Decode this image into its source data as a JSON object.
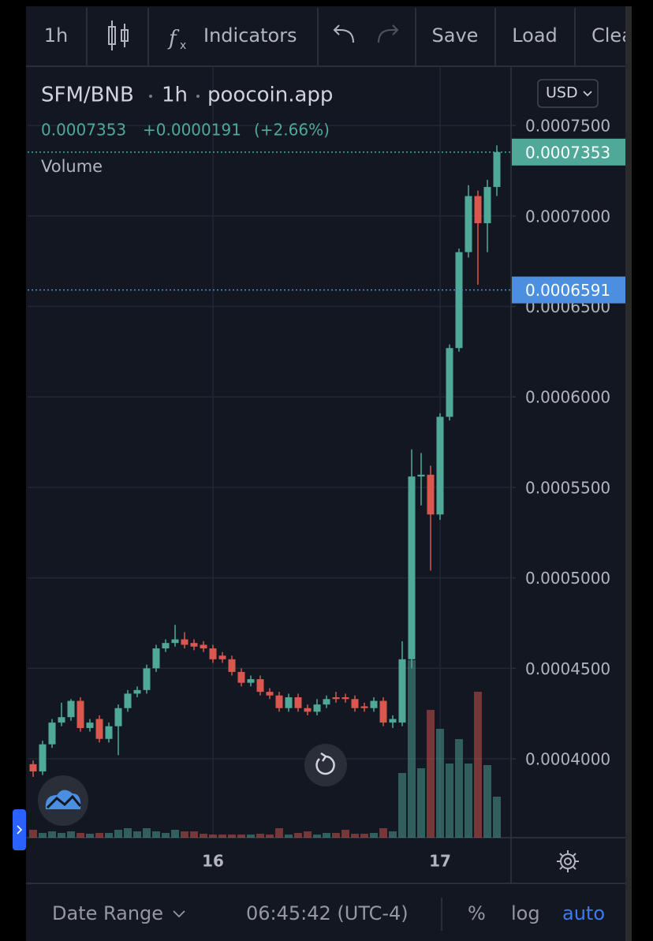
{
  "toolbar": {
    "interval": "1h",
    "indicators": "Indicators",
    "save": "Save",
    "load": "Load",
    "clear": "Clear"
  },
  "chart_data": {
    "type": "candlestick",
    "symbol": "SFM/BNB",
    "interval": "1h",
    "source": "poocoin.app",
    "currency": "USD",
    "last": 0.0007353,
    "change": "+0.0000191",
    "change_pct": "(+2.66%)",
    "volume_label": "Volume",
    "categories": [
      null,
      null,
      null,
      null,
      null,
      null,
      null,
      null,
      null,
      null,
      null,
      null,
      null,
      null,
      null,
      null,
      null,
      null,
      null,
      "16",
      null,
      null,
      null,
      null,
      null,
      null,
      null,
      null,
      null,
      null,
      null,
      null,
      null,
      null,
      null,
      null,
      null,
      null,
      null,
      null,
      null,
      null,
      null,
      "17",
      null,
      null,
      null,
      null,
      null,
      null
    ],
    "open": [
      0.000397,
      0.000393,
      0.000408,
      0.00042,
      0.000423,
      0.000432,
      0.000417,
      0.000422,
      0.000411,
      0.000418,
      0.000428,
      0.000436,
      0.000438,
      0.00045,
      0.000461,
      0.000464,
      0.000466,
      0.000464,
      0.000463,
      0.000461,
      0.000457,
      0.000455,
      0.000448,
      0.000442,
      0.000444,
      0.000437,
      0.000435,
      0.000428,
      0.000434,
      0.000428,
      0.000426,
      0.00043,
      0.000434,
      0.000434,
      0.000433,
      0.000429,
      0.000428,
      0.000432,
      0.00042,
      0.00042,
      0.000455,
      0.000556,
      0.000557,
      0.000535,
      0.000589,
      0.000627,
      0.00068,
      0.000711,
      0.000696,
      0.000716
    ],
    "high": [
      0.000399,
      0.00041,
      0.000422,
      0.000431,
      0.000433,
      0.000434,
      0.000422,
      0.000424,
      0.00042,
      0.00043,
      0.000438,
      0.00044,
      0.000452,
      0.000463,
      0.000466,
      0.000474,
      0.00047,
      0.000466,
      0.000465,
      0.000463,
      0.000459,
      0.000457,
      0.00045,
      0.000446,
      0.000446,
      0.000439,
      0.000437,
      0.000436,
      0.000436,
      0.00043,
      0.000433,
      0.000435,
      0.000437,
      0.000436,
      0.000435,
      0.000431,
      0.000434,
      0.000434,
      0.000424,
      0.000465,
      0.000571,
      0.000569,
      0.000562,
      0.000591,
      0.000629,
      0.000682,
      0.000717,
      0.000714,
      0.00072,
      0.000739
    ],
    "low": [
      0.00039,
      0.000391,
      0.000406,
      0.000418,
      0.000421,
      0.000415,
      0.000415,
      0.000409,
      0.000409,
      0.000402,
      0.000426,
      0.000434,
      0.000436,
      0.000448,
      0.000459,
      0.000462,
      0.000461,
      0.00046,
      0.000459,
      0.000453,
      0.000453,
      0.000446,
      0.00044,
      0.00044,
      0.000435,
      0.000433,
      0.000426,
      0.000426,
      0.000426,
      0.000424,
      0.000424,
      0.000428,
      0.000431,
      0.000431,
      0.000426,
      0.000426,
      0.000426,
      0.000418,
      0.000417,
      0.000418,
      0.00045,
      0.00054,
      0.000504,
      0.000532,
      0.000587,
      0.000625,
      0.000677,
      0.000662,
      0.00068,
      0.000711
    ],
    "close": [
      0.000393,
      0.000408,
      0.00042,
      0.000423,
      0.000432,
      0.000417,
      0.00042,
      0.000411,
      0.000418,
      0.000428,
      0.000436,
      0.000438,
      0.00045,
      0.000461,
      0.000464,
      0.000466,
      0.000463,
      0.000462,
      0.000461,
      0.000455,
      0.000455,
      0.000448,
      0.000442,
      0.000444,
      0.000437,
      0.000435,
      0.000428,
      0.000434,
      0.000428,
      0.000426,
      0.00043,
      0.000433,
      0.000433,
      0.000433,
      0.000428,
      0.000428,
      0.000432,
      0.00042,
      0.000422,
      0.000455,
      0.000556,
      0.000557,
      0.000535,
      0.000589,
      0.000627,
      0.00068,
      0.000711,
      0.000696,
      0.000716,
      0.0007353
    ],
    "volume": [
      10,
      6,
      8,
      6,
      8,
      6,
      5,
      6,
      6,
      10,
      12,
      8,
      12,
      8,
      6,
      10,
      8,
      8,
      5,
      4,
      4,
      4,
      4,
      4,
      5,
      4,
      12,
      4,
      6,
      8,
      4,
      6,
      6,
      10,
      5,
      5,
      6,
      12,
      8,
      82,
      225,
      88,
      162,
      138,
      94,
      125,
      94,
      185,
      92,
      52
    ],
    "up_color": "#4fa898",
    "down_color": "#d9574f",
    "ylim": [
      0.0003564,
      0.0007823
    ],
    "yticks": [
      {
        "value": 0.0004,
        "label": "0.0004000"
      },
      {
        "value": 0.00045,
        "label": "0.0004500"
      },
      {
        "value": 0.0005,
        "label": "0.0005000"
      },
      {
        "value": 0.00055,
        "label": "0.0005500"
      },
      {
        "value": 0.0006,
        "label": "0.0006000"
      },
      {
        "value": 0.00065,
        "label": "0.0006500"
      },
      {
        "value": 0.0007,
        "label": "0.0007000"
      },
      {
        "value": 0.00075,
        "label": "0.0007500"
      }
    ],
    "grid": true,
    "price_lines": [
      {
        "value": 0.0007353,
        "color": "#4fa898"
      },
      {
        "value": 0.0006591,
        "color": "#4a8fe0"
      }
    ]
  },
  "footer": {
    "date_range": "Date Range",
    "time": "06:45:42 (UTC-4)",
    "percent": "%",
    "log": "log",
    "auto": "auto"
  }
}
